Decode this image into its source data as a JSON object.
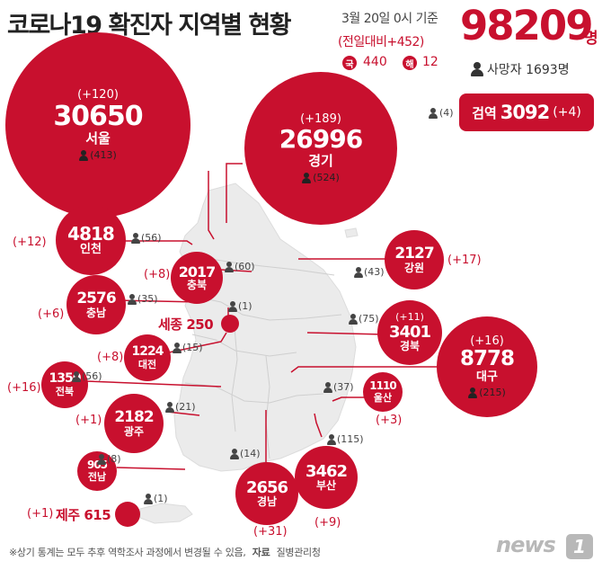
{
  "header": {
    "title": "코로나19 확진자 지역별 현황",
    "date": "3월 20일 0시 기준",
    "daily_change": "(전일대비+452)",
    "domestic_label": "국",
    "domestic_value": "440",
    "overseas_label": "해",
    "overseas_value": "12",
    "total": "98209",
    "total_unit": "명",
    "deaths_label": "사망자 1693명"
  },
  "quarantine": {
    "label": "검역",
    "count": "3092",
    "change": "(+4)",
    "deaths": "(4)"
  },
  "regions": {
    "seoul": {
      "name": "서울",
      "count": "30650",
      "inc": "(+120)",
      "deaths": "(413)"
    },
    "gyeonggi": {
      "name": "경기",
      "count": "26996",
      "inc": "(+189)",
      "deaths": "(524)"
    },
    "incheon": {
      "name": "인천",
      "count": "4818",
      "inc": "(+12)",
      "deaths": "(56)"
    },
    "gangwon": {
      "name": "강원",
      "count": "2127",
      "inc": "(+17)",
      "deaths": "(43)"
    },
    "chungbuk": {
      "name": "충북",
      "count": "2017",
      "inc": "(+8)",
      "deaths": "(60)"
    },
    "chungnam": {
      "name": "충남",
      "count": "2576",
      "inc": "(+6)",
      "deaths": "(35)"
    },
    "sejong": {
      "name": "세종",
      "count": "250",
      "label": "세종 250",
      "deaths": "(1)"
    },
    "daejeon": {
      "name": "대전",
      "count": "1224",
      "inc": "(+8)",
      "deaths": "(15)"
    },
    "gyeongbuk": {
      "name": "경북",
      "count": "3401",
      "inc": "(+11)",
      "deaths": "(75)"
    },
    "daegu": {
      "name": "대구",
      "count": "8778",
      "inc": "(+16)",
      "deaths": "(215)"
    },
    "jeonbuk": {
      "name": "전북",
      "count": "1350",
      "inc": "(+16)",
      "deaths": "(56)"
    },
    "ulsan": {
      "name": "울산",
      "count": "1110",
      "inc": "(+3)",
      "deaths": "(37)"
    },
    "gwangju": {
      "name": "광주",
      "count": "2182",
      "inc": "(+1)",
      "deaths": "(21)"
    },
    "busan": {
      "name": "부산",
      "count": "3462",
      "inc": "(+9)",
      "deaths": "(115)"
    },
    "jeonnam": {
      "name": "전남",
      "count": "905",
      "deaths": "(8)"
    },
    "gyeongnam": {
      "name": "경남",
      "count": "2656",
      "inc": "(+31)",
      "deaths": "(14)"
    },
    "jeju": {
      "name": "제주",
      "count": "615",
      "label": "제주 615",
      "inc": "(+1)",
      "deaths": "(1)"
    }
  },
  "footer": {
    "note": "※상기 통계는 모두 추후 역학조사 과정에서 변경될 수 있음,",
    "source_label": "자료",
    "source": "질병관리청",
    "logo_text": "news",
    "logo_mark": "1"
  },
  "colors": {
    "accent": "#c8102e",
    "map_land": "#eaeaea",
    "text": "#222222"
  },
  "icons": {
    "deaths": "person-icon"
  }
}
